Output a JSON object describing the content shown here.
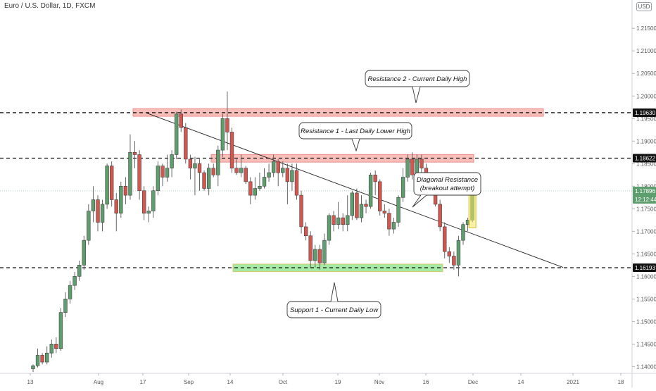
{
  "chart_data": {
    "type": "candlestick",
    "title": "Euro / U.S. Dollar, 1D, FXCM",
    "currency": "USD",
    "ylim": [
      1.1385,
      1.2205
    ],
    "y_ticks": [
      "1.21500",
      "1.21000",
      "1.20500",
      "1.20000",
      "1.19500",
      "1.19000",
      "1.18500",
      "1.18000",
      "1.17500",
      "1.17000",
      "1.16500",
      "1.16000",
      "1.15500",
      "1.15000",
      "1.14500",
      "1.14000"
    ],
    "x_ticks": [
      "13",
      "Aug",
      "17",
      "Sep",
      "14",
      "Oct",
      "19",
      "Nov",
      "16",
      "Dec",
      "14",
      "2021",
      "18"
    ],
    "price_labels": {
      "resistance_2": "1.19630",
      "resistance_1": "1.18622",
      "current": "1.17896",
      "countdown": "12:12:44",
      "support_1": "1.16193"
    },
    "levels": [
      {
        "name": "Resistance 2",
        "value": 1.1963
      },
      {
        "name": "Resistance 1",
        "value": 1.18622
      },
      {
        "name": "Support 1",
        "value": 1.16193
      }
    ],
    "candles": [
      [
        1.1395,
        1.1402,
        1.1405,
        1.1388
      ],
      [
        1.1402,
        1.1425,
        1.144,
        1.1398
      ],
      [
        1.1425,
        1.141,
        1.143,
        1.1405
      ],
      [
        1.141,
        1.143,
        1.1445,
        1.1405
      ],
      [
        1.143,
        1.145,
        1.146,
        1.142
      ],
      [
        1.145,
        1.144,
        1.1465,
        1.143
      ],
      [
        1.144,
        1.152,
        1.153,
        1.1435
      ],
      [
        1.152,
        1.155,
        1.1565,
        1.151
      ],
      [
        1.155,
        1.158,
        1.159,
        1.154
      ],
      [
        1.158,
        1.16,
        1.161,
        1.157
      ],
      [
        1.16,
        1.1625,
        1.1635,
        1.159
      ],
      [
        1.1625,
        1.168,
        1.169,
        1.1615
      ],
      [
        1.168,
        1.1745,
        1.176,
        1.167
      ],
      [
        1.1745,
        1.177,
        1.18,
        1.172
      ],
      [
        1.177,
        1.172,
        1.178,
        1.17
      ],
      [
        1.172,
        1.176,
        1.177,
        1.17
      ],
      [
        1.176,
        1.1845,
        1.185,
        1.175
      ],
      [
        1.1845,
        1.177,
        1.1855,
        1.1755
      ],
      [
        1.177,
        1.174,
        1.1785,
        1.17
      ],
      [
        1.174,
        1.18,
        1.181,
        1.173
      ],
      [
        1.18,
        1.178,
        1.182,
        1.176
      ],
      [
        1.178,
        1.1875,
        1.1915,
        1.177
      ],
      [
        1.1875,
        1.187,
        1.19,
        1.184
      ],
      [
        1.187,
        1.179,
        1.188,
        1.177
      ],
      [
        1.179,
        1.174,
        1.18,
        1.1725
      ],
      [
        1.174,
        1.1745,
        1.1755,
        1.172
      ],
      [
        1.1745,
        1.179,
        1.18,
        1.173
      ],
      [
        1.179,
        1.1845,
        1.1855,
        1.178
      ],
      [
        1.1845,
        1.182,
        1.185,
        1.18
      ],
      [
        1.182,
        1.184,
        1.187,
        1.181
      ],
      [
        1.184,
        1.187,
        1.188,
        1.182
      ],
      [
        1.187,
        1.196,
        1.1965,
        1.186
      ],
      [
        1.196,
        1.193,
        1.197,
        1.192
      ],
      [
        1.193,
        1.186,
        1.194,
        1.185
      ],
      [
        1.186,
        1.184,
        1.187,
        1.1815
      ],
      [
        1.184,
        1.185,
        1.1865,
        1.178
      ],
      [
        1.185,
        1.183,
        1.186,
        1.179
      ],
      [
        1.183,
        1.1795,
        1.1835,
        1.179
      ],
      [
        1.1795,
        1.184,
        1.185,
        1.178
      ],
      [
        1.184,
        1.1825,
        1.185,
        1.182
      ],
      [
        1.1825,
        1.188,
        1.189,
        1.18
      ],
      [
        1.188,
        1.195,
        1.196,
        1.1865
      ],
      [
        1.195,
        1.192,
        1.201,
        1.188
      ],
      [
        1.192,
        1.184,
        1.193,
        1.183
      ],
      [
        1.184,
        1.183,
        1.186,
        1.1825
      ],
      [
        1.183,
        1.184,
        1.187,
        1.182
      ],
      [
        1.184,
        1.181,
        1.1845,
        1.1805
      ],
      [
        1.181,
        1.178,
        1.182,
        1.176
      ],
      [
        1.178,
        1.1795,
        1.182,
        1.177
      ],
      [
        1.1795,
        1.18,
        1.183,
        1.179
      ],
      [
        1.18,
        1.182,
        1.184,
        1.1795
      ],
      [
        1.182,
        1.183,
        1.185,
        1.181
      ],
      [
        1.183,
        1.1855,
        1.187,
        1.182
      ],
      [
        1.1855,
        1.183,
        1.186,
        1.18
      ],
      [
        1.183,
        1.184,
        1.1855,
        1.182
      ],
      [
        1.184,
        1.181,
        1.185,
        1.176
      ],
      [
        1.181,
        1.1835,
        1.185,
        1.179
      ],
      [
        1.1835,
        1.178,
        1.185,
        1.177
      ],
      [
        1.178,
        1.171,
        1.179,
        1.1695
      ],
      [
        1.171,
        1.169,
        1.172,
        1.168
      ],
      [
        1.169,
        1.1635,
        1.17,
        1.162
      ],
      [
        1.1635,
        1.166,
        1.167,
        1.162
      ],
      [
        1.166,
        1.163,
        1.167,
        1.1615
      ],
      [
        1.163,
        1.168,
        1.1695,
        1.1625
      ],
      [
        1.168,
        1.1735,
        1.174,
        1.167
      ],
      [
        1.1735,
        1.1715,
        1.1745,
        1.17
      ],
      [
        1.1715,
        1.173,
        1.1765,
        1.1705
      ],
      [
        1.173,
        1.1715,
        1.174,
        1.17
      ],
      [
        1.1715,
        1.1735,
        1.178,
        1.17
      ],
      [
        1.1735,
        1.1785,
        1.179,
        1.1725
      ],
      [
        1.1785,
        1.173,
        1.1795,
        1.1725
      ],
      [
        1.173,
        1.176,
        1.178,
        1.172
      ],
      [
        1.176,
        1.1755,
        1.177,
        1.174
      ],
      [
        1.1755,
        1.1825,
        1.183,
        1.175
      ],
      [
        1.1825,
        1.181,
        1.1835,
        1.178
      ],
      [
        1.181,
        1.1745,
        1.1815,
        1.1735
      ],
      [
        1.1745,
        1.174,
        1.176,
        1.173
      ],
      [
        1.174,
        1.1705,
        1.175,
        1.169
      ],
      [
        1.1705,
        1.172,
        1.173,
        1.1695
      ],
      [
        1.172,
        1.1775,
        1.178,
        1.171
      ],
      [
        1.1775,
        1.182,
        1.184,
        1.1765
      ],
      [
        1.182,
        1.186,
        1.187,
        1.181
      ],
      [
        1.186,
        1.1825,
        1.1875,
        1.1815
      ],
      [
        1.1825,
        1.186,
        1.187,
        1.1815
      ],
      [
        1.186,
        1.184,
        1.187,
        1.1815
      ],
      [
        1.184,
        1.181,
        1.185,
        1.18
      ],
      [
        1.181,
        1.18,
        1.182,
        1.178
      ],
      [
        1.18,
        1.176,
        1.181,
        1.1755
      ],
      [
        1.176,
        1.171,
        1.177,
        1.17
      ],
      [
        1.171,
        1.1655,
        1.172,
        1.164
      ],
      [
        1.1655,
        1.1645,
        1.1665,
        1.163
      ],
      [
        1.1645,
        1.1625,
        1.1655,
        1.1615
      ],
      [
        1.1625,
        1.168,
        1.169,
        1.16
      ],
      [
        1.168,
        1.1715,
        1.172,
        1.167
      ],
      [
        1.1715,
        1.1725,
        1.173,
        1.17
      ],
      [
        1.1725,
        1.179,
        1.1795,
        1.172
      ]
    ],
    "annotations": [
      {
        "text": "Resistance 2 - Current Daily High"
      },
      {
        "text": "Resistance 1 - Last  Daily Lower High"
      },
      {
        "text": "Diagonal Resistance",
        "text2": "(breakout attempt)"
      },
      {
        "text": "Support 1 - Current Daily Low"
      }
    ],
    "colors": {
      "up": "#5e9e6e",
      "down": "#d3564f",
      "resistance_zone": "#f28b82",
      "support_zone": "#7ee07e",
      "highlight": "#f5e663",
      "current_label": "#5e9e6e"
    }
  }
}
